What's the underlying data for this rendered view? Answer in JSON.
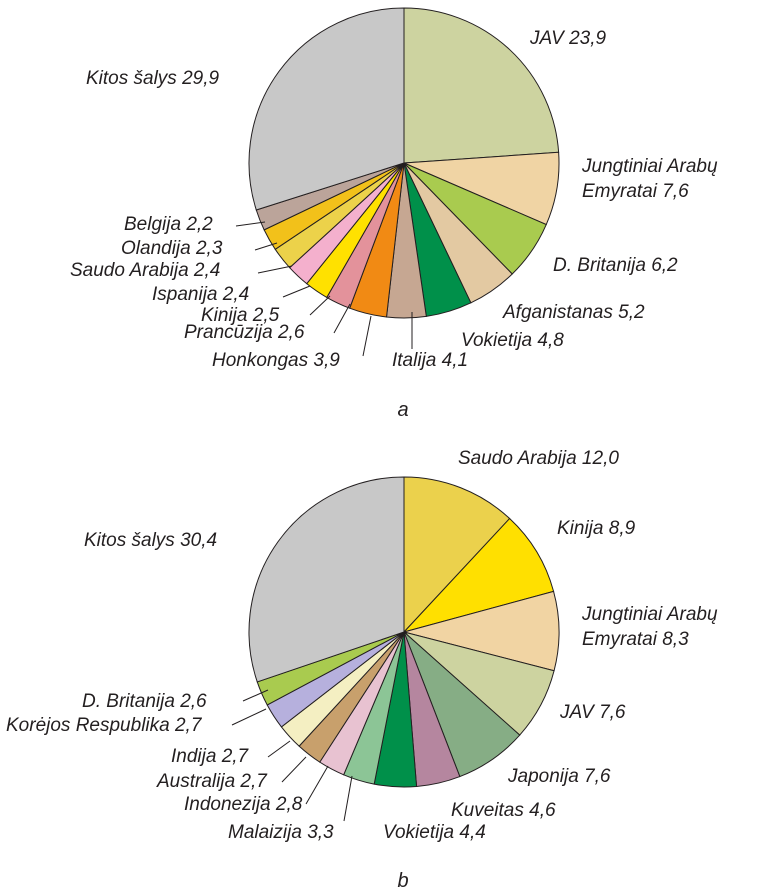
{
  "chart_data": [
    {
      "type": "pie",
      "caption": "a",
      "start": "top",
      "direction": "clockwise",
      "slices": [
        {
          "label": "JAV 23,9",
          "value": 23.9,
          "color": "#cdd3a0"
        },
        {
          "label": "Jungtiniai Arabų Emyratai 7,6",
          "lines": [
            "Jungtiniai Arabų",
            "Emyratai 7,6"
          ],
          "value": 7.6,
          "color": "#f0d4a4"
        },
        {
          "label": "D. Britanija 6,2",
          "value": 6.2,
          "color": "#a9cb4f"
        },
        {
          "label": "Afganistanas 5,2",
          "value": 5.2,
          "color": "#e3c9a2"
        },
        {
          "label": "Vokietija 4,8",
          "value": 4.8,
          "color": "#00904a"
        },
        {
          "label": "Italija 4,1",
          "value": 4.1,
          "color": "#c6a792"
        },
        {
          "label": "Honkongas 3,9",
          "value": 3.9,
          "color": "#f18a14"
        },
        {
          "label": "Prancūzija 2,6",
          "value": 2.6,
          "color": "#e3929b"
        },
        {
          "label": "Kinija 2,5",
          "value": 2.5,
          "color": "#ffe100"
        },
        {
          "label": "Ispanija 2,4",
          "value": 2.4,
          "color": "#f4b0cd"
        },
        {
          "label": "Saudo Arabija 2,4",
          "value": 2.4,
          "color": "#ecd24a"
        },
        {
          "label": "Olandija 2,3",
          "value": 2.3,
          "color": "#f2c11a"
        },
        {
          "label": "Belgija 2,2",
          "value": 2.2,
          "color": "#bba49a"
        },
        {
          "label": "Kitos šalys 29,9",
          "value": 29.9,
          "color": "#c8c8c8"
        }
      ]
    },
    {
      "type": "pie",
      "caption": "b",
      "start": "top",
      "direction": "clockwise",
      "slices": [
        {
          "label": "Saudo Arabija 12,0",
          "value": 12.0,
          "color": "#ebd14c"
        },
        {
          "label": "Kinija 8,9",
          "value": 8.9,
          "color": "#ffe000"
        },
        {
          "label": "Jungtiniai Arabų Emyratai 8,3",
          "lines": [
            "Jungtiniai Arabų",
            "Emyratai 8,3"
          ],
          "value": 8.3,
          "color": "#f1d4a3"
        },
        {
          "label": "JAV 7,6",
          "value": 7.6,
          "color": "#cdd3a0"
        },
        {
          "label": "Japonija 7,6",
          "value": 7.6,
          "color": "#86ad85"
        },
        {
          "label": "Kuveitas 4,6",
          "value": 4.6,
          "color": "#b5869f"
        },
        {
          "label": "Vokietija 4,4",
          "value": 4.4,
          "color": "#00904a"
        },
        {
          "label": "Malaizija 3,3",
          "value": 3.3,
          "color": "#8cc596"
        },
        {
          "label": "Indonezija 2,8",
          "value": 2.8,
          "color": "#e8c2d1"
        },
        {
          "label": "Australija 2,7",
          "value": 2.7,
          "color": "#c8a06c"
        },
        {
          "label": "Indija 2,7",
          "value": 2.7,
          "color": "#f4efc2"
        },
        {
          "label": "Korėjos Respublika 2,7",
          "value": 2.7,
          "color": "#b6b0dd"
        },
        {
          "label": "D. Britanija 2,6",
          "value": 2.6,
          "color": "#a9cb4f"
        },
        {
          "label": "Kitos šalys 30,4",
          "value": 30.4,
          "color": "#c8c8c8"
        }
      ]
    }
  ]
}
